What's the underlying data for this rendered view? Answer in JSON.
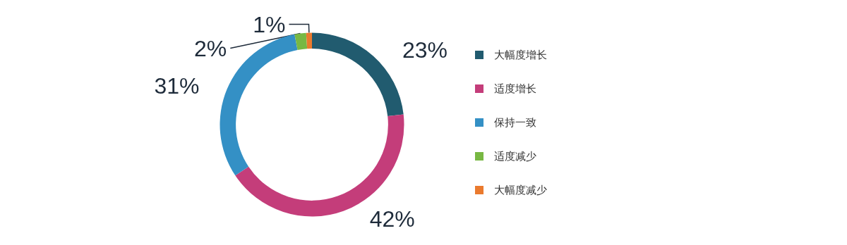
{
  "chart_data": {
    "type": "donut",
    "categories": [
      "大幅度增长",
      "适度增长",
      "保持一致",
      "适度减少",
      "大幅度减少"
    ],
    "values": [
      23,
      42,
      31,
      2,
      1
    ],
    "colors": [
      "#215b6f",
      "#c43d7a",
      "#3490c5",
      "#78b843",
      "#ea7a2e"
    ],
    "value_labels": [
      "23%",
      "42%",
      "31%",
      "2%",
      "1%"
    ],
    "legend": "right"
  }
}
